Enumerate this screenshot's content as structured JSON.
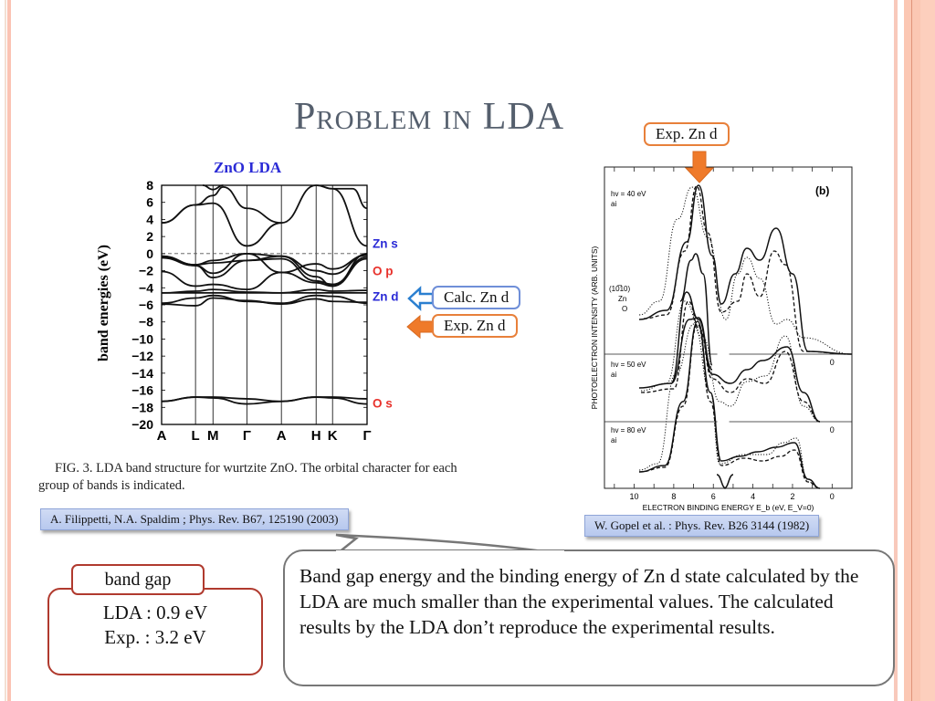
{
  "slide": {
    "title": "Problem in LDA"
  },
  "left_figure": {
    "chart_data": {
      "type": "line",
      "title": "ZnO  LDA",
      "ylabel": "band energies (eV)",
      "xlabel": "",
      "ylim": [
        -20,
        8
      ],
      "yticks": [
        8,
        6,
        4,
        2,
        0,
        -2,
        -4,
        -6,
        -8,
        -10,
        -12,
        -14,
        -16,
        -18,
        -20
      ],
      "ytick_labels": [
        "8",
        "6",
        "4",
        "2",
        "0",
        "−2",
        "−4",
        "−6",
        "−8",
        "−10",
        "−12",
        "−14",
        "−16",
        "−18",
        "−20"
      ],
      "k_points": [
        "A",
        "L",
        "M",
        "Γ",
        "A",
        "H",
        "K",
        "Γ"
      ],
      "k_positions": [
        0,
        0.165,
        0.25,
        0.415,
        0.583,
        0.752,
        0.832,
        1.0
      ],
      "fermi_level": 0,
      "orbital_labels": [
        {
          "label": "Zn s",
          "energy": 1.2,
          "color": "#2b2bd6"
        },
        {
          "label": "O p",
          "energy": -2,
          "color": "#e8322c"
        },
        {
          "label": "Zn d",
          "energy": -5,
          "color": "#2b2bd6"
        },
        {
          "label": "O s",
          "energy": -17.5,
          "color": "#e8322c"
        }
      ],
      "band_gap_gamma": 0.9,
      "series": [
        {
          "name": "conduction-1",
          "points": [
            [
              0,
              3.6
            ],
            [
              0.165,
              5.7
            ],
            [
              0.25,
              5.9
            ],
            [
              0.415,
              0.9
            ],
            [
              0.583,
              3.6
            ],
            [
              0.752,
              8
            ],
            [
              0.832,
              7.6
            ],
            [
              1.0,
              0.9
            ]
          ]
        },
        {
          "name": "conduction-2",
          "points": [
            [
              0,
              3.6
            ],
            [
              0.165,
              5.7
            ],
            [
              0.25,
              6.8
            ],
            [
              0.3,
              7.8
            ],
            [
              0.415,
              5.3
            ],
            [
              0.583,
              3.6
            ]
          ]
        },
        {
          "name": "conduction-3",
          "points": [
            [
              0.832,
              7.6
            ],
            [
              0.93,
              7.6
            ],
            [
              1.0,
              5.3
            ]
          ]
        },
        {
          "name": "conduction-4",
          "points": [
            [
              0.2,
              8
            ],
            [
              0.25,
              7.5
            ],
            [
              0.3,
              8
            ]
          ]
        },
        {
          "name": "O-p-1",
          "points": [
            [
              0,
              -0.3
            ],
            [
              0.165,
              -1.3
            ],
            [
              0.25,
              -0.8
            ],
            [
              0.415,
              0
            ],
            [
              0.583,
              -0.3
            ],
            [
              0.752,
              -2.7
            ],
            [
              0.832,
              -3.8
            ],
            [
              1.0,
              0
            ]
          ]
        },
        {
          "name": "O-p-2",
          "points": [
            [
              0,
              -0.4
            ],
            [
              0.165,
              -1.4
            ],
            [
              0.25,
              -2.3
            ],
            [
              0.415,
              0
            ],
            [
              0.583,
              -2.2
            ],
            [
              0.752,
              -1.2
            ],
            [
              0.832,
              -1.8
            ],
            [
              1.0,
              -0.2
            ]
          ]
        },
        {
          "name": "O-p-3",
          "points": [
            [
              0,
              -0.5
            ],
            [
              0.165,
              -1.4
            ],
            [
              0.25,
              -2.8
            ],
            [
              0.415,
              -0.8
            ],
            [
              0.583,
              -0.6
            ],
            [
              0.752,
              -3.2
            ],
            [
              0.832,
              -3.6
            ],
            [
              1.0,
              -0.4
            ]
          ]
        },
        {
          "name": "O-p-4",
          "points": [
            [
              0,
              -2.1
            ],
            [
              0.165,
              -3.8
            ],
            [
              0.25,
              -3.6
            ],
            [
              0.415,
              -4.2
            ],
            [
              0.583,
              -2.2
            ],
            [
              0.752,
              -3.4
            ],
            [
              0.832,
              -3.8
            ],
            [
              1.0,
              -0.6
            ]
          ]
        },
        {
          "name": "O-p-5",
          "points": [
            [
              0,
              -0.3
            ],
            [
              0.165,
              -1.3
            ],
            [
              0.25,
              -1.1
            ],
            [
              0.415,
              -0.8
            ],
            [
              0.583,
              -0.3
            ],
            [
              0.752,
              -2.0
            ],
            [
              0.832,
              -2.4
            ],
            [
              1.0,
              -0.1
            ]
          ]
        },
        {
          "name": "Zn-d-1",
          "points": [
            [
              0,
              -4.6
            ],
            [
              1.0,
              -4.6
            ]
          ]
        },
        {
          "name": "Zn-d-2",
          "points": [
            [
              0,
              -5.8
            ],
            [
              0.165,
              -5.2
            ],
            [
              0.25,
              -4.9
            ],
            [
              0.415,
              -5.6
            ],
            [
              0.583,
              -5.8
            ],
            [
              0.752,
              -4.9
            ],
            [
              0.832,
              -5.0
            ],
            [
              1.0,
              -5.8
            ]
          ]
        },
        {
          "name": "Zn-d-3",
          "points": [
            [
              0,
              -5.9
            ],
            [
              0.165,
              -6.1
            ],
            [
              0.25,
              -5.2
            ],
            [
              0.415,
              -5.5
            ],
            [
              0.583,
              -5.9
            ],
            [
              0.752,
              -5.3
            ],
            [
              0.832,
              -5.6
            ],
            [
              1.0,
              -5.7
            ]
          ]
        },
        {
          "name": "Zn-d-4",
          "points": [
            [
              0,
              -4.6
            ],
            [
              0.165,
              -4.4
            ],
            [
              0.25,
              -4.2
            ],
            [
              0.415,
              -4.5
            ],
            [
              0.583,
              -4.6
            ],
            [
              0.752,
              -4.2
            ],
            [
              0.832,
              -4.4
            ],
            [
              1.0,
              -4.3
            ]
          ]
        },
        {
          "name": "O-s-1",
          "points": [
            [
              0,
              -17.3
            ],
            [
              0.165,
              -16.8
            ],
            [
              0.25,
              -16.8
            ],
            [
              0.415,
              -17.0
            ],
            [
              0.583,
              -17.3
            ],
            [
              0.752,
              -16.8
            ],
            [
              0.832,
              -16.8
            ],
            [
              1.0,
              -17.0
            ]
          ]
        },
        {
          "name": "O-s-2",
          "points": [
            [
              0,
              -17.3
            ],
            [
              0.165,
              -16.8
            ],
            [
              0.25,
              -16.9
            ],
            [
              0.415,
              -17.6
            ],
            [
              0.583,
              -17.3
            ],
            [
              0.752,
              -16.8
            ],
            [
              0.832,
              -16.9
            ],
            [
              1.0,
              -17.6
            ]
          ]
        }
      ]
    },
    "caption": "FIG. 3.  LDA band structure for wurtzite ZnO. The orbital character for each group of bands is indicated.",
    "reference": "A. Filippetti, N.A. Spaldim ; Phys. Rev. B67, 125190 (2003)"
  },
  "right_figure": {
    "chart_data": {
      "type": "line",
      "panel_label": "(b)",
      "ylabel": "PHOTOELECTRON INTENSITY (ARB. UNITS)",
      "xlabel": "ELECTRON BINDING ENERGY E_b (eV, E_V=0)",
      "xlim": [
        11.5,
        -1
      ],
      "xticks": [
        10,
        8,
        6,
        4,
        2,
        0
      ],
      "legend": [
        {
          "name": "(10̅10)",
          "style": "solid"
        },
        {
          "name": "Zn",
          "style": "dashed"
        },
        {
          "name": "O",
          "style": "dotted"
        }
      ],
      "panels": [
        {
          "label": "hv = 40 eV",
          "sub": "ai"
        },
        {
          "label": "hv = 50 eV",
          "sub": "ai"
        },
        {
          "label": "hv = 80 eV",
          "sub": "ai"
        }
      ],
      "peak_zn_d": 7.5
    },
    "reference": "W. Gopel et al. : Phys. Rev. B26 3144 (1982)"
  },
  "callouts": {
    "calc_zn_d": "Calc. Zn d",
    "exp_zn_d_left": "Exp. Zn d",
    "exp_zn_d_top": "Exp. Zn d"
  },
  "band_gap": {
    "title": "band gap",
    "lda": "LDA : 0.9 eV",
    "exp": "Exp. : 3.2 eV"
  },
  "conclusion": "Band gap energy and the binding energy of Zn d state calculated by the LDA are much smaller than the experimental values. The calculated results by the LDA don’t reproduce the experimental results.",
  "colors": {
    "title": "#555f6d",
    "blue_label": "#2b2bd6",
    "red_label": "#e8322c",
    "calc_callout_border": "#6f8fd8",
    "exp_callout_border": "#e8803a",
    "arrow_orange": "#ef7a2a",
    "gap_border": "#b03a2e"
  }
}
